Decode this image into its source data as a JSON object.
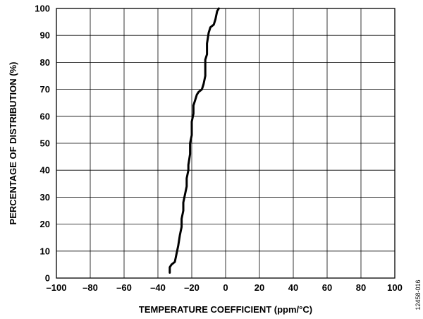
{
  "chart_data": {
    "type": "line",
    "xlabel": "TEMPERATURE COEFFICIENT (ppm/°C)",
    "ylabel": "PERCENTAGE OF DISTRIBUTION (%)",
    "xlim": [
      -100,
      100
    ],
    "ylim": [
      0,
      100
    ],
    "x_ticks": [
      -100,
      -80,
      -60,
      -40,
      -20,
      0,
      20,
      40,
      60,
      80,
      100
    ],
    "y_ticks": [
      0,
      10,
      20,
      30,
      40,
      50,
      60,
      70,
      80,
      90,
      100
    ],
    "x_tick_labels": [
      "–100",
      "–80",
      "–60",
      "–40",
      "–20",
      "0",
      "20",
      "40",
      "60",
      "80",
      "100"
    ],
    "y_tick_labels": [
      "0",
      "10",
      "20",
      "30",
      "40",
      "50",
      "60",
      "70",
      "80",
      "90",
      "100"
    ],
    "grid": true,
    "line_color": "#000000",
    "series": [
      {
        "x": [
          -33,
          -33,
          -32,
          -30,
          -29,
          -28,
          -27,
          -26,
          -26,
          -25,
          -25,
          -24,
          -23,
          -23,
          -22,
          -22,
          -21,
          -21,
          -20,
          -20,
          -20,
          -19,
          -19,
          -18,
          -17,
          -16,
          -14,
          -13,
          -12,
          -12,
          -11,
          -11,
          -10,
          -9,
          -7,
          -6,
          -5,
          -4
        ],
        "y": [
          2,
          4,
          5,
          6,
          9,
          12,
          16,
          19,
          22,
          25,
          28,
          31,
          34,
          37,
          40,
          42,
          46,
          50,
          53,
          56,
          58,
          61,
          64,
          66,
          68,
          69,
          70,
          72,
          75,
          81,
          83,
          87,
          91,
          93,
          94,
          96,
          99,
          100
        ]
      }
    ]
  },
  "figure_id": "12458-016"
}
